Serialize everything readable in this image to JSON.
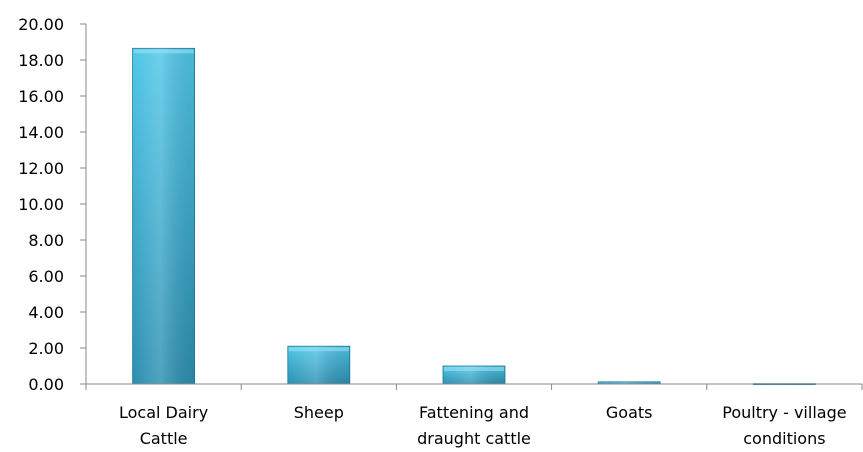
{
  "chart_data": {
    "type": "bar",
    "title": "",
    "xlabel": "",
    "ylabel": "",
    "categories": [
      [
        "Local Dairy",
        "Cattle"
      ],
      [
        "Sheep"
      ],
      [
        "Fattening and",
        "draught cattle"
      ],
      [
        "Goats"
      ],
      [
        "Poultry - village",
        "conditions"
      ]
    ],
    "values": [
      18.65,
      2.1,
      1.0,
      0.12,
      0.02
    ],
    "ylim": [
      0,
      20
    ],
    "yticks": [
      "0.00",
      "2.00",
      "4.00",
      "6.00",
      "8.00",
      "10.00",
      "12.00",
      "14.00",
      "16.00",
      "18.00",
      "20.00"
    ],
    "grid": false,
    "legend": "none",
    "colors": {
      "bar_top": "#4FC6E8",
      "bar_bottom": "#2B8FB0",
      "bar_edge": "#1F7896",
      "bar_highlight": "#9EE3F5",
      "axis": "#898989"
    }
  }
}
